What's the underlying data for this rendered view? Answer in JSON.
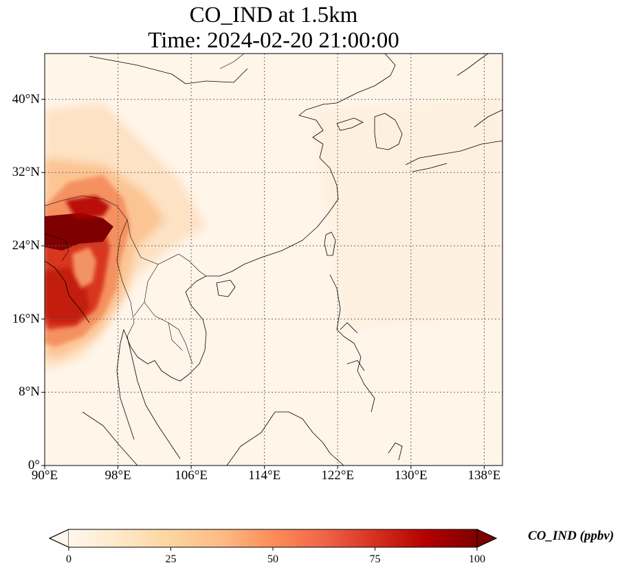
{
  "title_line1": "CO_IND at 1.5km",
  "title_line2": "Time: 2024-02-20 21:00:00",
  "map": {
    "projection": "plate-carree",
    "lon_range": [
      90,
      140
    ],
    "lat_range": [
      0,
      45
    ],
    "gridlines": "dotted",
    "lon_ticks": [
      {
        "value": 90,
        "label": "90°E"
      },
      {
        "value": 98,
        "label": "98°E"
      },
      {
        "value": 106,
        "label": "106°E"
      },
      {
        "value": 114,
        "label": "114°E"
      },
      {
        "value": 122,
        "label": "122°E"
      },
      {
        "value": 130,
        "label": "130°E"
      },
      {
        "value": 138,
        "label": "138°E"
      }
    ],
    "lat_ticks": [
      {
        "value": 0,
        "label": "0°"
      },
      {
        "value": 8,
        "label": "8°N"
      },
      {
        "value": 16,
        "label": "16°N"
      },
      {
        "value": 24,
        "label": "24°N"
      },
      {
        "value": 32,
        "label": "32°N"
      },
      {
        "value": 40,
        "label": "40°N"
      }
    ],
    "colormap": "OrRd",
    "features": [
      "coastlines",
      "country borders"
    ]
  },
  "colorbar": {
    "label": "CO_IND (ppbv)",
    "min": 0,
    "max": 100,
    "extend": "both",
    "ticks": [
      "0",
      "25",
      "50",
      "75",
      "100"
    ],
    "colors": [
      "#fff7ec",
      "#fee8c8",
      "#fdd49e",
      "#fdbb84",
      "#fc8d59",
      "#ef6548",
      "#d7301f",
      "#b30000",
      "#7f0000"
    ]
  }
}
